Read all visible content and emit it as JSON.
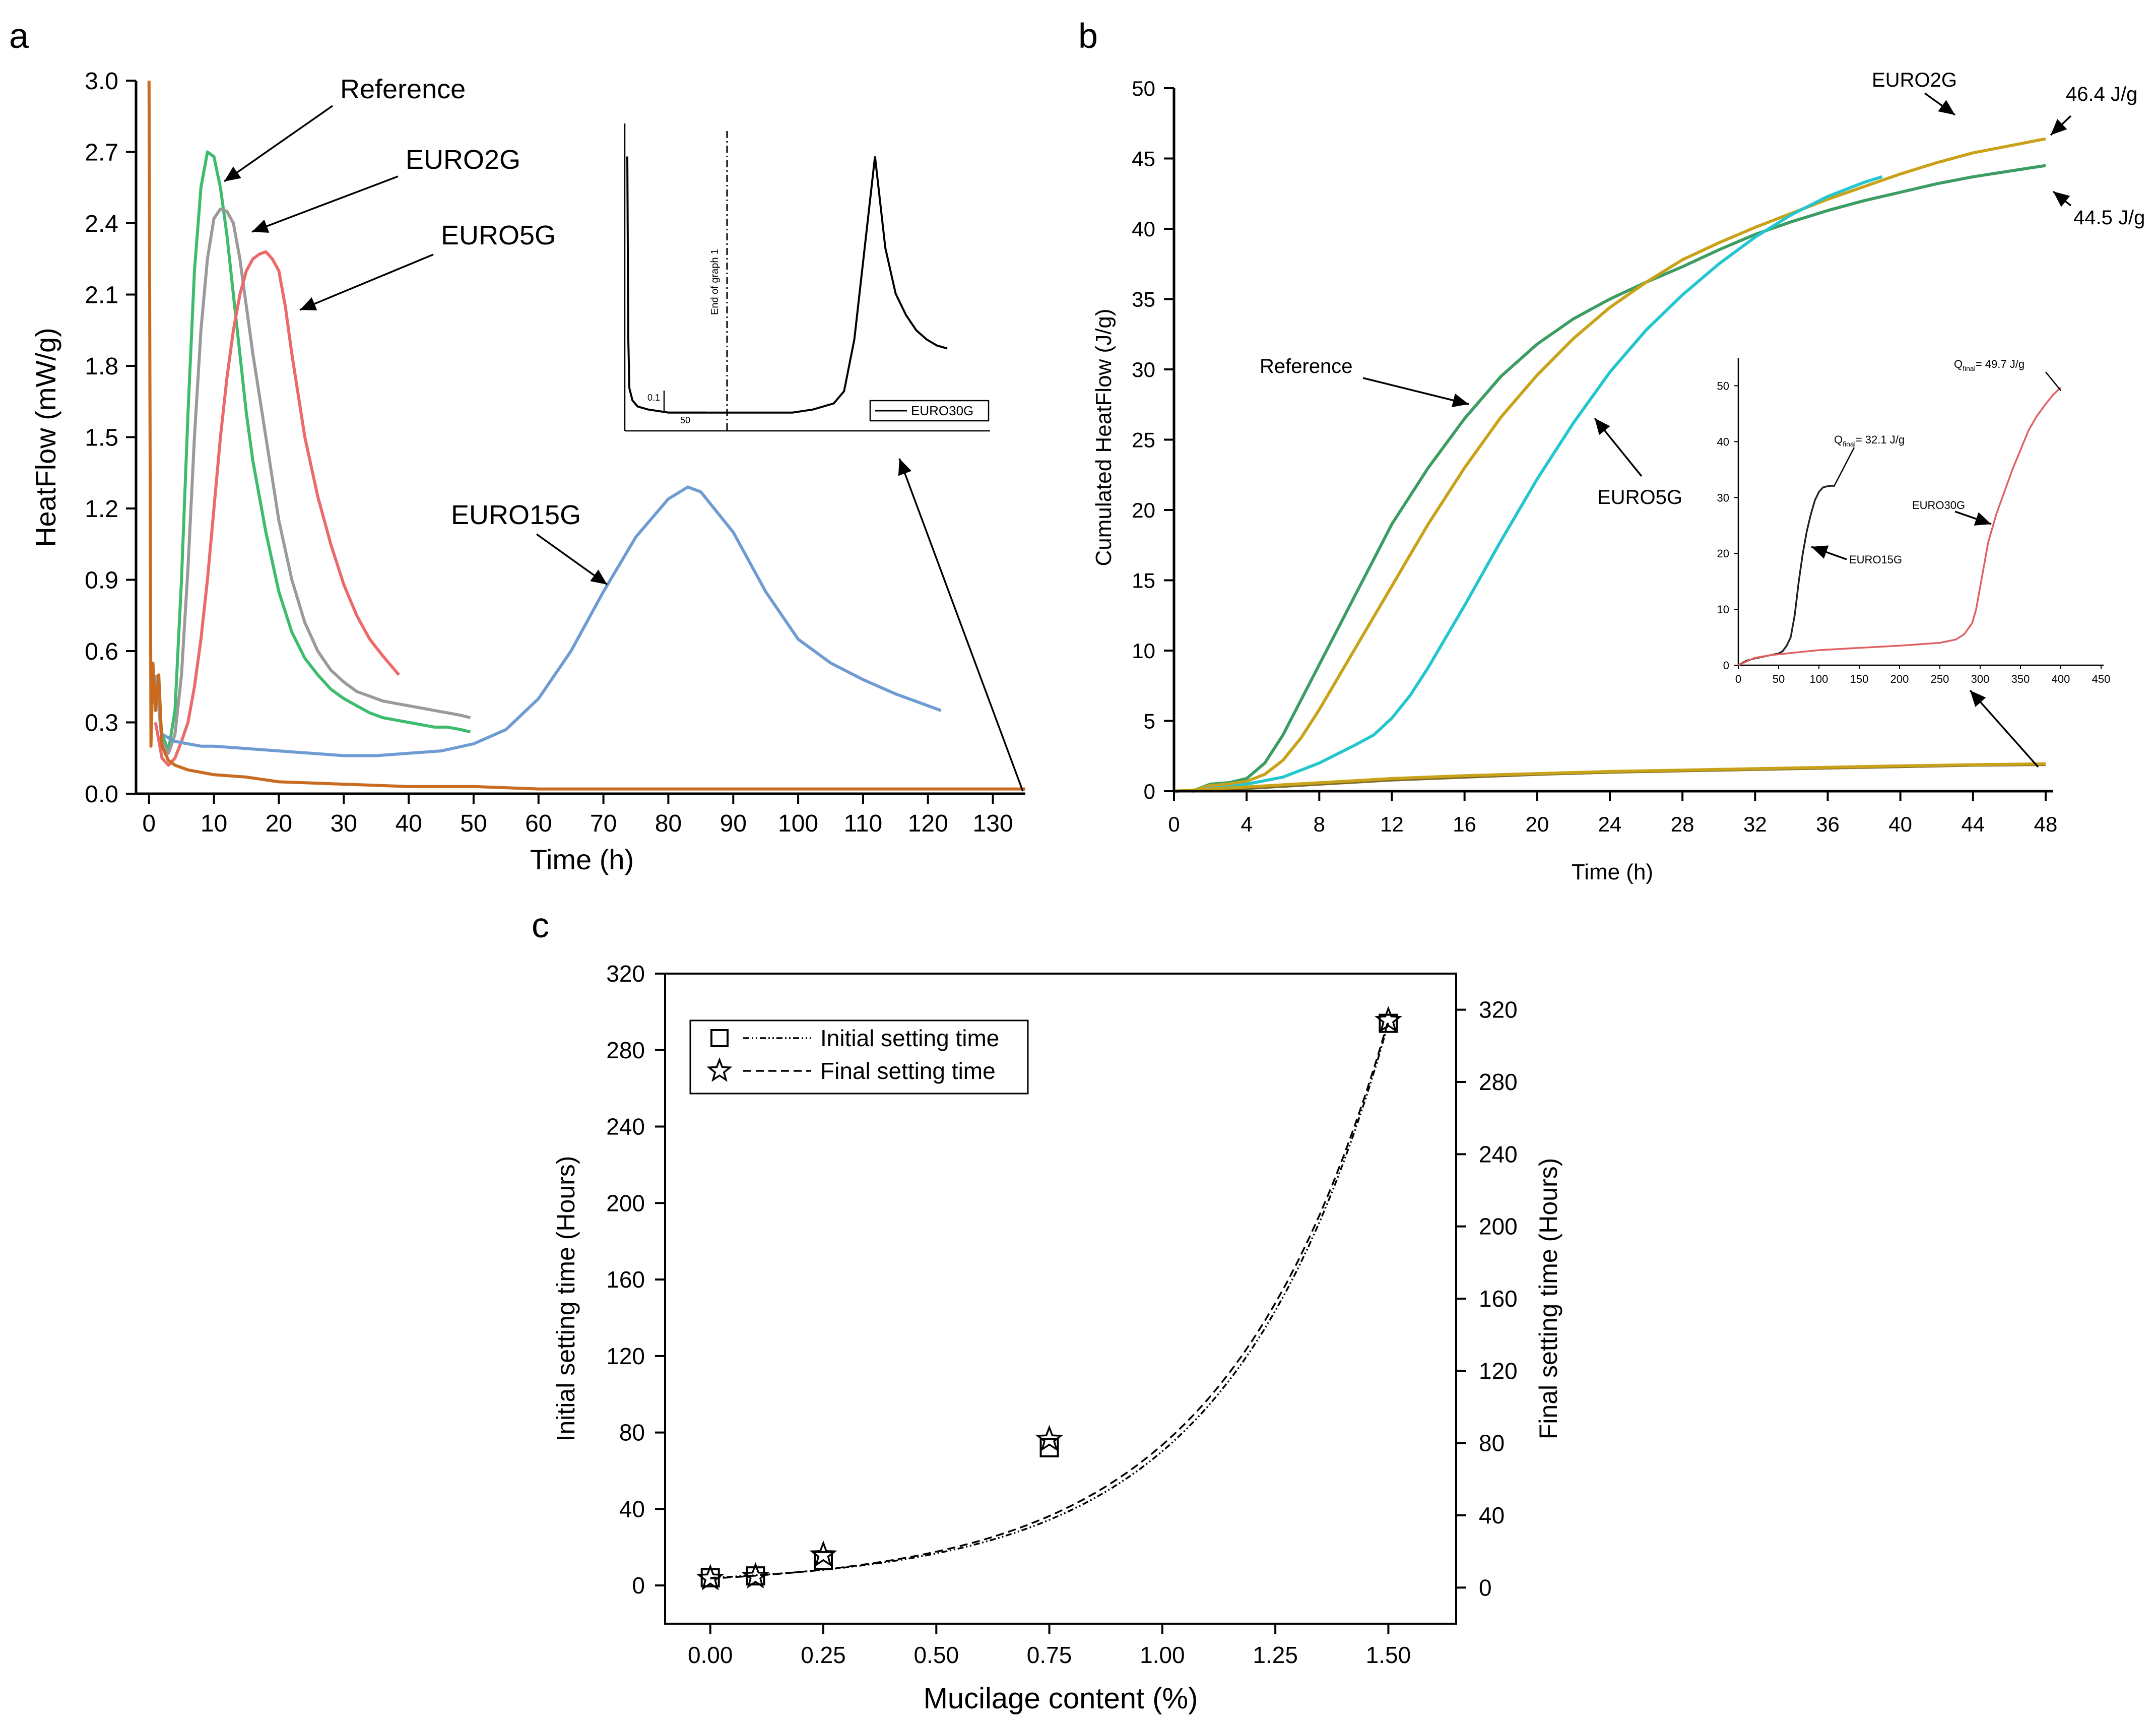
{
  "panel_labels": {
    "a": "a",
    "b": "b",
    "c": "c"
  },
  "colors": {
    "reference": "#3cbc6c",
    "euro2g": "#9a9a9a",
    "euro5g": "#ec6a6a",
    "euro15g": "#6f9bd3",
    "euro30g": "#c96a1e",
    "b_reference": "#3c9d63",
    "b_euro2g": "#c9a21a",
    "b_euro5g": "#23c6cf",
    "b_low": "#7a6a2a",
    "inset_euro15g": "#222222",
    "inset_euro30g": "#e06060"
  },
  "chart_data": [
    {
      "id": "a",
      "type": "line",
      "xlabel": "Time (h)",
      "ylabel": "HeatFlow (mW/g)",
      "xlim": [
        -2,
        135
      ],
      "ylim": [
        0,
        3.0
      ],
      "xticks": [
        "0",
        "10",
        "20",
        "30",
        "40",
        "50",
        "60",
        "70",
        "80",
        "90",
        "100",
        "110",
        "120",
        "130"
      ],
      "yticks": [
        "0.0",
        "0.3",
        "0.6",
        "0.9",
        "1.2",
        "1.5",
        "1.8",
        "2.1",
        "2.4",
        "2.7",
        "3.0"
      ],
      "annotations": [
        "Reference",
        "EURO2G",
        "EURO5G",
        "EURO15G"
      ],
      "series": [
        {
          "name": "Reference",
          "x": [
            1,
            2,
            3,
            4,
            5,
            6,
            7,
            8,
            9,
            10,
            11,
            12,
            13,
            14,
            15,
            16,
            18,
            20,
            22,
            24,
            26,
            28,
            30,
            32,
            34,
            36,
            38,
            40,
            42,
            44,
            46,
            48,
            49.5
          ],
          "y": [
            0.5,
            0.25,
            0.18,
            0.35,
            0.9,
            1.6,
            2.2,
            2.55,
            2.7,
            2.68,
            2.55,
            2.35,
            2.1,
            1.85,
            1.6,
            1.4,
            1.1,
            0.85,
            0.68,
            0.57,
            0.5,
            0.44,
            0.4,
            0.37,
            0.34,
            0.32,
            0.31,
            0.3,
            0.29,
            0.28,
            0.28,
            0.27,
            0.26
          ]
        },
        {
          "name": "EURO2G",
          "x": [
            1,
            2,
            3,
            4,
            5,
            6,
            7,
            8,
            9,
            10,
            11,
            12,
            13,
            14,
            15,
            16,
            18,
            20,
            22,
            24,
            26,
            28,
            30,
            32,
            34,
            36,
            38,
            40,
            42,
            44,
            46,
            48,
            49.5
          ],
          "y": [
            0.5,
            0.22,
            0.17,
            0.25,
            0.5,
            0.95,
            1.5,
            1.95,
            2.25,
            2.42,
            2.46,
            2.45,
            2.4,
            2.25,
            2.05,
            1.85,
            1.5,
            1.15,
            0.9,
            0.72,
            0.6,
            0.52,
            0.47,
            0.43,
            0.41,
            0.39,
            0.38,
            0.37,
            0.36,
            0.35,
            0.34,
            0.33,
            0.32
          ]
        },
        {
          "name": "EURO5G",
          "x": [
            1,
            2,
            3,
            4,
            5,
            6,
            7,
            8,
            9,
            10,
            11,
            12,
            13,
            14,
            15,
            16,
            17,
            18,
            19,
            20,
            21,
            22,
            24,
            26,
            28,
            30,
            32,
            34,
            36,
            38.5
          ],
          "y": [
            0.3,
            0.15,
            0.12,
            0.15,
            0.22,
            0.3,
            0.45,
            0.65,
            0.9,
            1.2,
            1.5,
            1.75,
            1.95,
            2.1,
            2.2,
            2.25,
            2.27,
            2.28,
            2.25,
            2.2,
            2.05,
            1.85,
            1.5,
            1.25,
            1.05,
            0.88,
            0.75,
            0.65,
            0.58,
            0.5
          ]
        },
        {
          "name": "EURO15G",
          "x": [
            2,
            4,
            6,
            8,
            10,
            15,
            20,
            25,
            30,
            35,
            40,
            45,
            50,
            55,
            60,
            65,
            70,
            75,
            80,
            83,
            85,
            90,
            95,
            100,
            105,
            110,
            115,
            120,
            122
          ],
          "y": [
            0.25,
            0.22,
            0.21,
            0.2,
            0.2,
            0.19,
            0.18,
            0.17,
            0.16,
            0.16,
            0.17,
            0.18,
            0.21,
            0.27,
            0.4,
            0.6,
            0.85,
            1.08,
            1.24,
            1.29,
            1.27,
            1.1,
            0.85,
            0.65,
            0.55,
            0.48,
            0.42,
            0.37,
            0.35
          ]
        },
        {
          "name": "EURO30G",
          "x": [
            0,
            0.3,
            0.6,
            1,
            1.5,
            2,
            3,
            4,
            6,
            8,
            10,
            15,
            20,
            30,
            40,
            50,
            60,
            70,
            80,
            90,
            100,
            110,
            120,
            130,
            135
          ],
          "y": [
            3.0,
            0.2,
            0.55,
            0.35,
            0.5,
            0.2,
            0.14,
            0.12,
            0.1,
            0.09,
            0.08,
            0.07,
            0.05,
            0.04,
            0.03,
            0.03,
            0.02,
            0.02,
            0.02,
            0.02,
            0.02,
            0.02,
            0.02,
            0.02,
            0.02
          ]
        }
      ],
      "inset": {
        "legend": [
          "EURO30G"
        ],
        "marker_label": "End of graph 1",
        "scale_y": "0.1",
        "scale_x": "50",
        "x": [
          0,
          1,
          2,
          5,
          10,
          20,
          40,
          60,
          80,
          100,
          120,
          140,
          160,
          180,
          200,
          210,
          220,
          230,
          240,
          250,
          260,
          270,
          280,
          290,
          300,
          310
        ],
        "y": [
          0.9,
          0.3,
          0.14,
          0.1,
          0.08,
          0.07,
          0.06,
          0.06,
          0.06,
          0.06,
          0.06,
          0.06,
          0.06,
          0.07,
          0.09,
          0.13,
          0.3,
          0.6,
          0.9,
          0.6,
          0.45,
          0.38,
          0.33,
          0.3,
          0.28,
          0.27
        ]
      }
    },
    {
      "id": "b",
      "type": "line",
      "xlabel": "Time (h)",
      "ylabel": "Cumulated HeatFlow (J/g)",
      "xlim": [
        0,
        48
      ],
      "ylim": [
        0,
        50
      ],
      "xticks": [
        "0",
        "4",
        "8",
        "12",
        "16",
        "20",
        "24",
        "28",
        "32",
        "36",
        "40",
        "44",
        "48"
      ],
      "yticks": [
        "0",
        "5",
        "10",
        "15",
        "20",
        "25",
        "30",
        "35",
        "40",
        "45",
        "50"
      ],
      "annotations": [
        "EURO2G",
        "46.4 J/g",
        "44.5 J/g",
        "Reference",
        "EURO5G"
      ],
      "series": [
        {
          "name": "Reference",
          "x": [
            1,
            2,
            3,
            4,
            5,
            6,
            7,
            8,
            9,
            10,
            11,
            12,
            14,
            16,
            18,
            20,
            22,
            24,
            26,
            28,
            30,
            32,
            34,
            36,
            38,
            40,
            42,
            44,
            46,
            48
          ],
          "y": [
            0,
            0.5,
            0.6,
            0.9,
            2,
            4,
            6.5,
            9,
            11.5,
            14,
            16.5,
            19,
            23,
            26.5,
            29.5,
            31.8,
            33.6,
            35,
            36.2,
            37.3,
            38.5,
            39.6,
            40.5,
            41.3,
            42,
            42.6,
            43.2,
            43.7,
            44.1,
            44.5
          ]
        },
        {
          "name": "EURO2G",
          "x": [
            1,
            2,
            3,
            4,
            5,
            6,
            7,
            8,
            9,
            10,
            11,
            12,
            13,
            14,
            16,
            18,
            20,
            22,
            24,
            26,
            28,
            30,
            32,
            34,
            36,
            38,
            40,
            42,
            44,
            46,
            48
          ],
          "y": [
            0,
            0.4,
            0.5,
            0.7,
            1.2,
            2.2,
            3.8,
            5.8,
            8,
            10.2,
            12.4,
            14.6,
            16.8,
            19,
            23,
            26.6,
            29.6,
            32.2,
            34.4,
            36.2,
            37.8,
            39,
            40.1,
            41.1,
            42.1,
            43,
            43.9,
            44.7,
            45.4,
            45.9,
            46.4
          ]
        },
        {
          "name": "EURO5G",
          "x": [
            1,
            2,
            3,
            4,
            6,
            8,
            10,
            11,
            12,
            13,
            14,
            15,
            16,
            17,
            18,
            19,
            20,
            22,
            24,
            26,
            28,
            30,
            32,
            34,
            36,
            38,
            39
          ],
          "y": [
            0,
            0.2,
            0.3,
            0.5,
            1,
            2,
            3.3,
            4,
            5.2,
            6.8,
            8.8,
            11,
            13.2,
            15.5,
            17.8,
            20,
            22.2,
            26.2,
            29.8,
            32.8,
            35.3,
            37.5,
            39.4,
            41,
            42.3,
            43.3,
            43.7
          ]
        },
        {
          "name": "EURO15G",
          "x": [
            0,
            4,
            8,
            12,
            16,
            20,
            24,
            28,
            32,
            36,
            40,
            44,
            48
          ],
          "y": [
            0,
            0.2,
            0.5,
            0.8,
            1,
            1.2,
            1.35,
            1.45,
            1.55,
            1.65,
            1.75,
            1.85,
            1.9
          ]
        },
        {
          "name": "EURO30G",
          "x": [
            0,
            4,
            8,
            12,
            16,
            20,
            24,
            28,
            32,
            36,
            40,
            44,
            48
          ],
          "y": [
            0,
            0.3,
            0.6,
            0.9,
            1.1,
            1.25,
            1.4,
            1.5,
            1.6,
            1.7,
            1.8,
            1.88,
            1.95
          ]
        }
      ],
      "inset": {
        "xticks": [
          "0",
          "50",
          "100",
          "150",
          "200",
          "250",
          "300",
          "350",
          "400",
          "450"
        ],
        "yticks": [
          "0",
          "10",
          "20",
          "30",
          "40",
          "50"
        ],
        "labels": [
          "Q",
          "final",
          "= 32.1 J/g",
          "= 49.7 J/g",
          "EURO15G",
          "EURO30G"
        ],
        "euro15g": {
          "x": [
            0,
            10,
            20,
            30,
            40,
            50,
            55,
            60,
            65,
            70,
            75,
            80,
            85,
            90,
            95,
            100,
            105,
            110,
            115,
            120
          ],
          "y": [
            0,
            0.8,
            1.2,
            1.5,
            1.8,
            2.1,
            2.5,
            3.5,
            5,
            9,
            15,
            20,
            24,
            27,
            29.5,
            31,
            31.8,
            32,
            32.1,
            32.1
          ]
        },
        "euro30g": {
          "x": [
            0,
            20,
            40,
            60,
            80,
            100,
            150,
            200,
            250,
            270,
            280,
            290,
            295,
            300,
            305,
            310,
            320,
            330,
            340,
            350,
            360,
            370,
            380,
            390,
            400
          ],
          "y": [
            0,
            1.3,
            1.8,
            2.1,
            2.4,
            2.7,
            3.1,
            3.5,
            4,
            4.6,
            5.5,
            7.5,
            10,
            14,
            18,
            22,
            27,
            31,
            35,
            38.5,
            42,
            44.5,
            46.5,
            48.3,
            49.7
          ]
        }
      }
    },
    {
      "id": "c",
      "type": "line",
      "xlabel": "Mucilage content (%)",
      "ylabel": "Initial setting time (Hours)",
      "ylabel_right": "Final setting time (Hours)",
      "xlim": [
        -0.1,
        1.65
      ],
      "ylim": [
        -20,
        320
      ],
      "ylim_right": [
        -20,
        340
      ],
      "xticks": [
        "0.00",
        "0.25",
        "0.50",
        "0.75",
        "1.00",
        "1.25",
        "1.50"
      ],
      "yticks": [
        "0",
        "40",
        "80",
        "120",
        "160",
        "200",
        "240",
        "280",
        "320"
      ],
      "yticks_right": [
        "0",
        "40",
        "80",
        "120",
        "160",
        "200",
        "240",
        "280",
        "320"
      ],
      "legend": [
        "Initial setting time",
        "Final setting time"
      ],
      "series": [
        {
          "name": "Initial setting time",
          "marker": "square",
          "x": [
            0,
            0.1,
            0.25,
            0.75,
            1.5
          ],
          "y": [
            4,
            5,
            13,
            72,
            294
          ]
        },
        {
          "name": "Final setting time",
          "marker": "star",
          "x": [
            0,
            0.1,
            0.25,
            0.75,
            1.5
          ],
          "y": [
            5,
            6,
            18,
            82,
            314
          ]
        }
      ]
    }
  ]
}
